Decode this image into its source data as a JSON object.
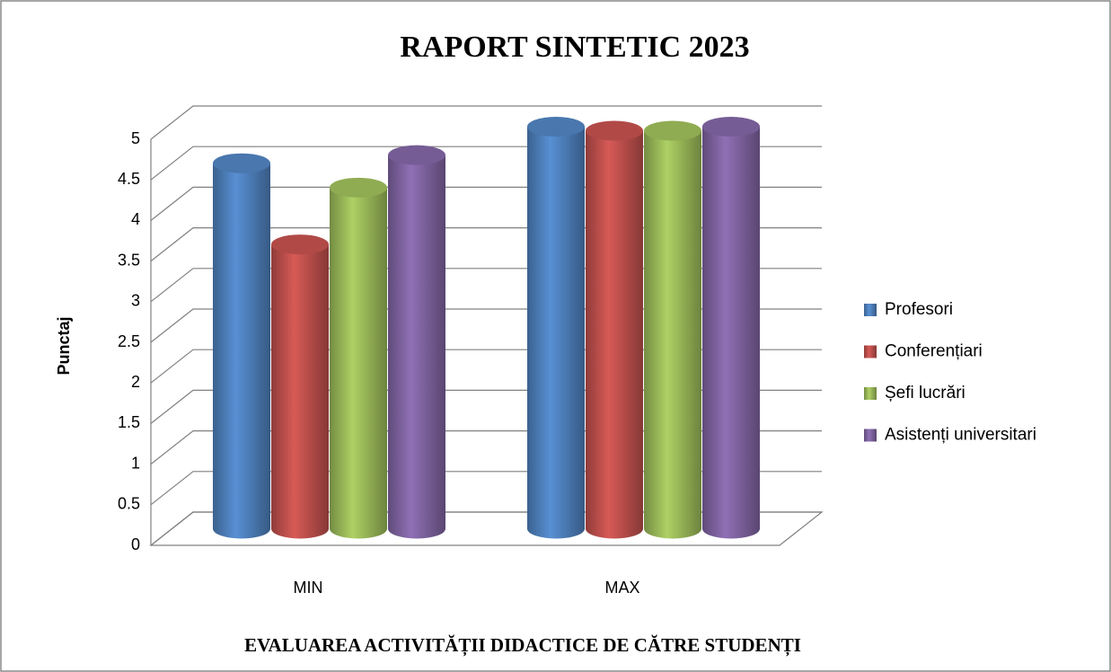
{
  "chart_data": {
    "type": "bar3d",
    "title": "RAPORT SINTETIC 2023",
    "subtitle": "EVALUAREA ACTIVITĂȚII DIDACTICE DE CĂTRE STUDENȚI",
    "y_label": "Punctaj",
    "categories": [
      "MIN",
      "MAX"
    ],
    "series": [
      {
        "name": "Profesori",
        "color": "#4f81bd",
        "values": [
          4.5,
          4.95
        ]
      },
      {
        "name": "Conferențiari",
        "color": "#c0504d",
        "values": [
          3.5,
          4.9
        ]
      },
      {
        "name": "Șefi lucrări",
        "color": "#9bbb59",
        "values": [
          4.2,
          4.9
        ]
      },
      {
        "name": "Asistenți universitari",
        "color": "#8064a2",
        "values": [
          4.6,
          4.95
        ]
      }
    ],
    "ylim": [
      0,
      5
    ],
    "yticks": [
      0,
      0.5,
      1,
      1.5,
      2,
      2.5,
      3,
      3.5,
      4,
      4.5,
      5
    ],
    "grid": true,
    "legend": "right"
  }
}
